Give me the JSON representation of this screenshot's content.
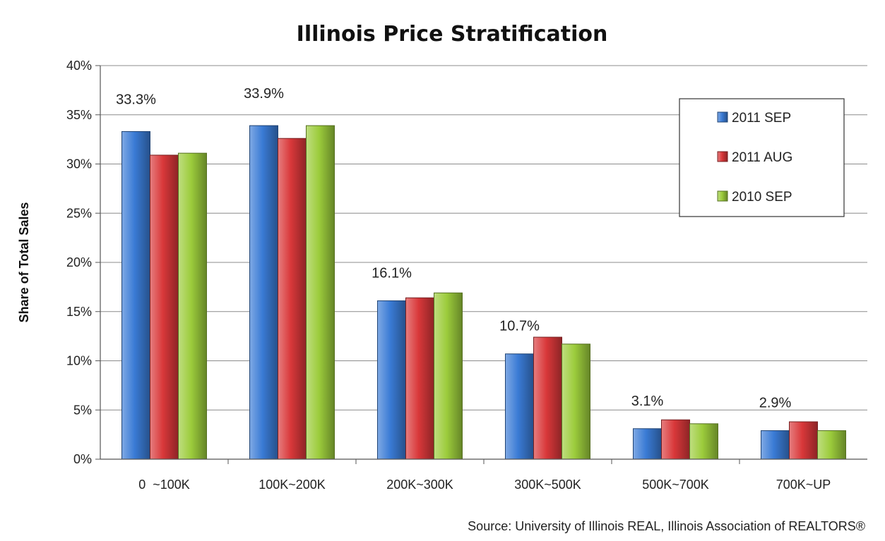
{
  "chart_data": {
    "type": "bar",
    "title": "Illinois Price Stratification",
    "ylabel": "Share  of  Total  Sales",
    "xlabel": "",
    "ylim": [
      0,
      40
    ],
    "yticks": [
      "0%",
      "5%",
      "10%",
      "15%",
      "20%",
      "25%",
      "30%",
      "35%",
      "40%"
    ],
    "categories": [
      "0  ~100K",
      "100K~200K",
      "200K~300K",
      "300K~500K",
      "500K~700K",
      "700K~UP"
    ],
    "series": [
      {
        "name": "2011 SEP",
        "values": [
          33.3,
          33.9,
          16.1,
          10.7,
          3.1,
          2.9
        ],
        "color": "#3a7bd5"
      },
      {
        "name": "2011 AUG",
        "values": [
          30.9,
          32.6,
          16.4,
          12.4,
          4.0,
          3.8
        ],
        "color": "#d9383a"
      },
      {
        "name": "2010 SEP",
        "values": [
          31.1,
          33.9,
          16.9,
          11.7,
          3.6,
          2.9
        ],
        "color": "#9ccc3c"
      }
    ],
    "data_labels": [
      "33.3%",
      "33.9%",
      "16.1%",
      "10.7%",
      "3.1%",
      "2.9%"
    ],
    "grid": true,
    "legend": "top-right",
    "source": "Source: University of Illinois REAL, Illinois Association of REALTORS®"
  }
}
